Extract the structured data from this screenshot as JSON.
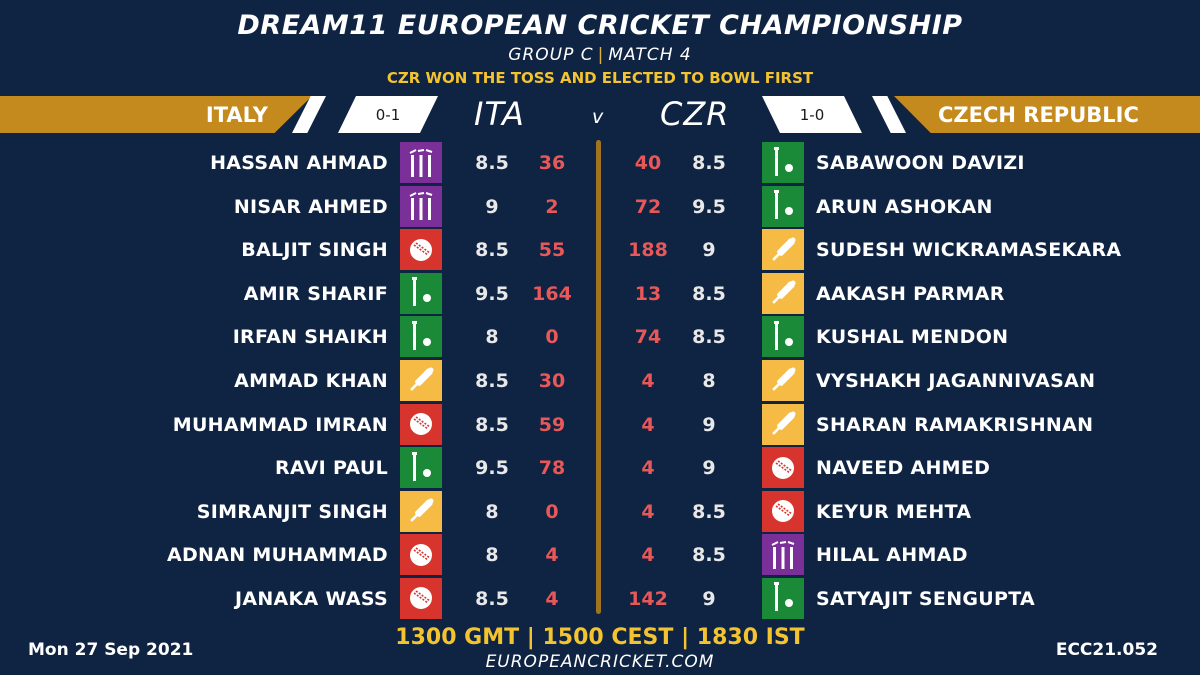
{
  "header": {
    "title": "DREAM11 EUROPEAN CRICKET CHAMPIONSHIP",
    "group": "GROUP  C",
    "match": "MATCH 4",
    "toss": "CZR WON THE TOSS AND ELECTED TO BOWL FIRST"
  },
  "teams": {
    "left": {
      "name": "ITALY",
      "abbr": "ITA",
      "record": "0-1"
    },
    "right": {
      "name": "CZECH REPUBLIC",
      "abbr": "CZR",
      "record": "1-0"
    },
    "vs": "v"
  },
  "colors": {
    "background": "#0f2342",
    "gold": "#c58a1e",
    "yellow": "#f4c430",
    "points_red": "#e85858",
    "bowler": "#d8342e",
    "batter": "#f6bb45",
    "wicketkeeper": "#1b8a38",
    "allrounder": "#7b2f98"
  },
  "players_left": [
    {
      "name": "HASSAN AHMAD",
      "role": "allrounder",
      "icon": "stumps-icon",
      "credits": "8.5",
      "points": "36"
    },
    {
      "name": "NISAR AHMED",
      "role": "allrounder",
      "icon": "stumps-icon",
      "credits": "9",
      "points": "2"
    },
    {
      "name": "BALJIT SINGH",
      "role": "bowler",
      "icon": "ball-icon",
      "credits": "8.5",
      "points": "55"
    },
    {
      "name": "AMIR SHARIF",
      "role": "wicketkeeper",
      "icon": "keeper-icon",
      "credits": "9.5",
      "points": "164"
    },
    {
      "name": "IRFAN SHAIKH",
      "role": "wicketkeeper",
      "icon": "keeper-icon",
      "credits": "8",
      "points": "0"
    },
    {
      "name": "AMMAD KHAN",
      "role": "batter",
      "icon": "bat-icon",
      "credits": "8.5",
      "points": "30"
    },
    {
      "name": "MUHAMMAD IMRAN",
      "role": "bowler",
      "icon": "ball-icon",
      "credits": "8.5",
      "points": "59"
    },
    {
      "name": "RAVI PAUL",
      "role": "wicketkeeper",
      "icon": "keeper-icon",
      "credits": "9.5",
      "points": "78"
    },
    {
      "name": "SIMRANJIT SINGH",
      "role": "batter",
      "icon": "bat-icon",
      "credits": "8",
      "points": "0"
    },
    {
      "name": "ADNAN MUHAMMAD",
      "role": "bowler",
      "icon": "ball-icon",
      "credits": "8",
      "points": "4"
    },
    {
      "name": "JANAKA WASS",
      "role": "bowler",
      "icon": "ball-icon",
      "credits": "8.5",
      "points": "4"
    }
  ],
  "players_right": [
    {
      "name": "SABAWOON DAVIZI",
      "role": "wicketkeeper",
      "icon": "keeper-icon",
      "credits": "8.5",
      "points": "40"
    },
    {
      "name": "ARUN ASHOKAN",
      "role": "wicketkeeper",
      "icon": "keeper-icon",
      "credits": "9.5",
      "points": "72"
    },
    {
      "name": "SUDESH WICKRAMASEKARA",
      "role": "batter",
      "icon": "bat-icon",
      "credits": "9",
      "points": "188"
    },
    {
      "name": "AAKASH PARMAR",
      "role": "batter",
      "icon": "bat-icon",
      "credits": "8.5",
      "points": "13"
    },
    {
      "name": "KUSHAL MENDON",
      "role": "wicketkeeper",
      "icon": "keeper-icon",
      "credits": "8.5",
      "points": "74"
    },
    {
      "name": "VYSHAKH JAGANNIVASAN",
      "role": "batter",
      "icon": "bat-icon",
      "credits": "8",
      "points": "4"
    },
    {
      "name": "SHARAN RAMAKRISHNAN",
      "role": "batter",
      "icon": "bat-icon",
      "credits": "9",
      "points": "4"
    },
    {
      "name": "NAVEED AHMED",
      "role": "bowler",
      "icon": "ball-icon",
      "credits": "9",
      "points": "4"
    },
    {
      "name": "KEYUR MEHTA",
      "role": "bowler",
      "icon": "ball-icon",
      "credits": "8.5",
      "points": "4"
    },
    {
      "name": "HILAL AHMAD",
      "role": "allrounder",
      "icon": "stumps-icon",
      "credits": "8.5",
      "points": "4"
    },
    {
      "name": "SATYAJIT SENGUPTA",
      "role": "wicketkeeper",
      "icon": "keeper-icon",
      "credits": "9",
      "points": "142"
    }
  ],
  "footer": {
    "date": "Mon 27 Sep 2021",
    "times": "1300 GMT | 1500 CEST | 1830 IST",
    "website": "EUROPEANCRICKET.COM",
    "code": "ECC21.052"
  }
}
